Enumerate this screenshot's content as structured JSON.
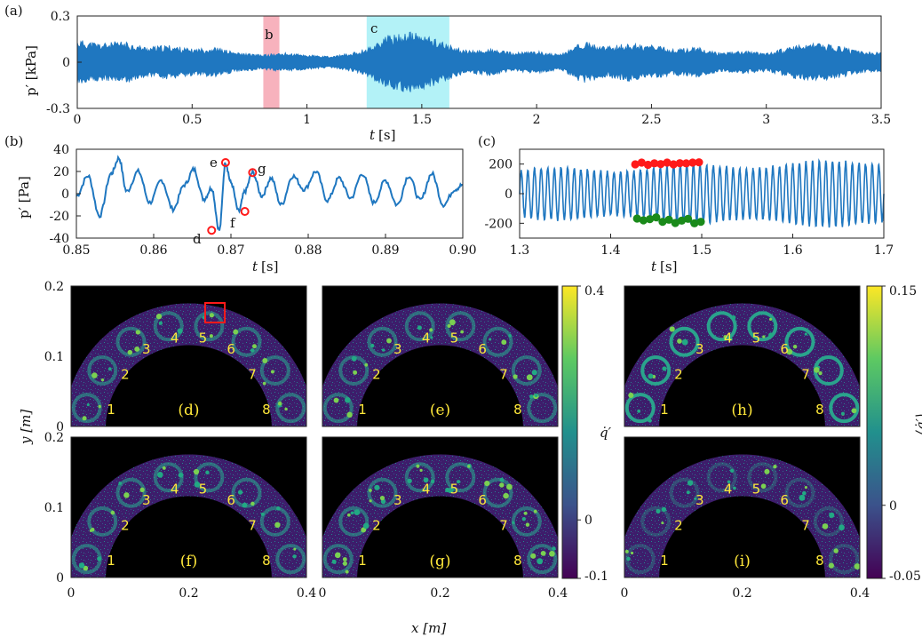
{
  "chart_data": [
    {
      "panel": "(a)",
      "type": "line",
      "xlabel": "t [s]",
      "ylabel": "p′ [kPa]",
      "xlim": [
        0,
        3.5
      ],
      "ylim": [
        -0.3,
        0.3
      ],
      "x_ticks": [
        "0",
        "0.5",
        "1",
        "1.5",
        "2",
        "2.5",
        "3",
        "3.5"
      ],
      "y_ticks": [
        "-0.3",
        "0",
        "0.3"
      ],
      "x_tick_values": [
        0,
        0.5,
        1,
        1.5,
        2,
        2.5,
        3,
        3.5
      ],
      "y_tick_values": [
        -0.3,
        0,
        0.3
      ],
      "envelope": {
        "t": [
          0,
          0.1,
          0.2,
          0.3,
          0.4,
          0.5,
          0.6,
          0.7,
          0.8,
          0.9,
          1.0,
          1.1,
          1.2,
          1.27,
          1.35,
          1.45,
          1.55,
          1.62,
          1.7,
          1.8,
          1.9,
          2.0,
          2.1,
          2.2,
          2.3,
          2.4,
          2.5,
          2.6,
          2.7,
          2.8,
          2.9,
          3.0,
          3.1,
          3.2,
          3.3,
          3.4,
          3.5
        ],
        "amplitude": [
          0.12,
          0.1,
          0.11,
          0.08,
          0.09,
          0.07,
          0.08,
          0.05,
          0.04,
          0.05,
          0.04,
          0.03,
          0.05,
          0.08,
          0.14,
          0.16,
          0.13,
          0.09,
          0.06,
          0.07,
          0.05,
          0.06,
          0.04,
          0.11,
          0.08,
          0.1,
          0.09,
          0.07,
          0.08,
          0.05,
          0.06,
          0.05,
          0.08,
          0.1,
          0.09,
          0.06,
          0.05
        ]
      },
      "highlights": [
        {
          "label": "b",
          "range": [
            0.81,
            0.88
          ],
          "color": "#f7b2bd"
        },
        {
          "label": "c",
          "range": [
            1.26,
            1.62
          ],
          "color": "#b3f2f7"
        }
      ]
    },
    {
      "panel": "(b)",
      "type": "line",
      "xlabel": "t [s]",
      "ylabel": "p′ [Pa]",
      "xlim": [
        0.85,
        0.9
      ],
      "ylim": [
        -40,
        40
      ],
      "x_ticks": [
        "0.85",
        "0.86",
        "0.87",
        "0.88",
        "0.89",
        "0.90"
      ],
      "y_ticks": [
        "-40",
        "-20",
        "0",
        "20",
        "40"
      ],
      "x_tick_values": [
        0.85,
        0.86,
        0.87,
        0.88,
        0.89,
        0.9
      ],
      "y_tick_values": [
        -40,
        -20,
        0,
        20,
        40
      ],
      "t": [
        0.85,
        0.8515,
        0.853,
        0.8545,
        0.8555,
        0.8565,
        0.858,
        0.8595,
        0.861,
        0.8625,
        0.864,
        0.8652,
        0.8665,
        0.8675,
        0.8685,
        0.8693,
        0.87,
        0.871,
        0.8718,
        0.8728,
        0.874,
        0.8752,
        0.8765,
        0.878,
        0.8795,
        0.881,
        0.8825,
        0.884,
        0.8855,
        0.887,
        0.8885,
        0.89,
        0.8915,
        0.893,
        0.8945,
        0.896,
        0.8975,
        0.899,
        0.9
      ],
      "values": [
        -2,
        16,
        -20,
        18,
        32,
        2,
        20,
        -8,
        12,
        -14,
        8,
        22,
        -5,
        5,
        -33,
        28,
        10,
        -16,
        2,
        19,
        -2,
        14,
        -10,
        16,
        4,
        20,
        -6,
        14,
        -4,
        18,
        -8,
        12,
        -10,
        16,
        -6,
        18,
        -10,
        4,
        8
      ],
      "markers": [
        {
          "label": "d",
          "t": 0.8675,
          "value": -33
        },
        {
          "label": "e",
          "t": 0.8693,
          "value": 28
        },
        {
          "label": "f",
          "t": 0.8718,
          "value": -16
        },
        {
          "label": "g",
          "t": 0.8728,
          "value": 19
        }
      ]
    },
    {
      "panel": "(c)",
      "type": "line",
      "xlabel": "t [s]",
      "xlim": [
        1.3,
        1.7
      ],
      "ylim": [
        -300,
        300
      ],
      "x_ticks": [
        "1.3",
        "1.4",
        "1.5",
        "1.6",
        "1.7"
      ],
      "y_ticks": [
        "-200",
        "0",
        "200"
      ],
      "x_tick_values": [
        1.3,
        1.4,
        1.5,
        1.6,
        1.7
      ],
      "y_tick_values": [
        -200,
        0,
        200
      ],
      "oscillation": {
        "cycles": 55,
        "amplitude_start": 150,
        "amplitude_end": 210
      },
      "red_markers": {
        "t": [
          1.427,
          1.434,
          1.441,
          1.448,
          1.455,
          1.462,
          1.469,
          1.476,
          1.483,
          1.49,
          1.497
        ],
        "values": [
          198,
          210,
          195,
          205,
          200,
          210,
          198,
          206,
          205,
          210,
          212
        ]
      },
      "green_markers": {
        "t": [
          1.429,
          1.436,
          1.443,
          1.45,
          1.457,
          1.464,
          1.471,
          1.478,
          1.485,
          1.492,
          1.499
        ],
        "values": [
          -168,
          -180,
          -172,
          -160,
          -190,
          -176,
          -198,
          -182,
          -170,
          -200,
          -190
        ]
      }
    },
    {
      "panel": "(d)-(i)",
      "type": "heatmap",
      "xlabel": "x [m]",
      "ylabel": "y [m]",
      "x_ticks": [
        "0",
        "0.2",
        "0.4"
      ],
      "x_tick_values": [
        0,
        0.2,
        0.4
      ],
      "y_ticks_top": [
        "0",
        "0.1",
        "0.2"
      ],
      "y_ticks_bottom": [
        "0",
        "0.1",
        "0.2"
      ],
      "y_tick_values": [
        0,
        0.1,
        0.2
      ],
      "panels": [
        "(d)",
        "(e)",
        "(h)",
        "(f)",
        "(g)",
        "(i)"
      ],
      "burner_numbers": [
        "1",
        "2",
        "3",
        "4",
        "5",
        "6",
        "7",
        "8"
      ],
      "colorbar_left": {
        "label": "q̇′",
        "ticks": [
          "0.4",
          "0",
          "-0.1"
        ],
        "tick_values": [
          0.4,
          0,
          -0.1
        ],
        "range": [
          -0.1,
          0.4
        ]
      },
      "colorbar_right": {
        "label": "⟨q̇′⟩",
        "ticks": [
          "0.15",
          "0",
          "-0.05"
        ],
        "tick_values": [
          0.15,
          0,
          -0.05
        ],
        "range": [
          -0.05,
          0.15
        ]
      }
    }
  ],
  "labels": {
    "panel_a": "(a)",
    "panel_b": "(b)",
    "panel_c": "(c)",
    "band_b": "b",
    "band_c": "c",
    "t_axis": "t",
    "t_unit": "[s]",
    "pa_axis": "p′ [kPa]",
    "pb_axis": "p′ [Pa]",
    "y_axis": "y [m]",
    "x_axis": "x [m]",
    "marker_d": "d",
    "marker_e": "e",
    "marker_f": "f",
    "marker_g": "g"
  },
  "colors": {
    "signal": "#1f77c0",
    "red_marker": "#ff1a1a",
    "green_marker": "#1a8a1a",
    "band_b": "#f7b2bd",
    "band_c": "#b3f2f7",
    "yellow": "#ffe83a"
  }
}
